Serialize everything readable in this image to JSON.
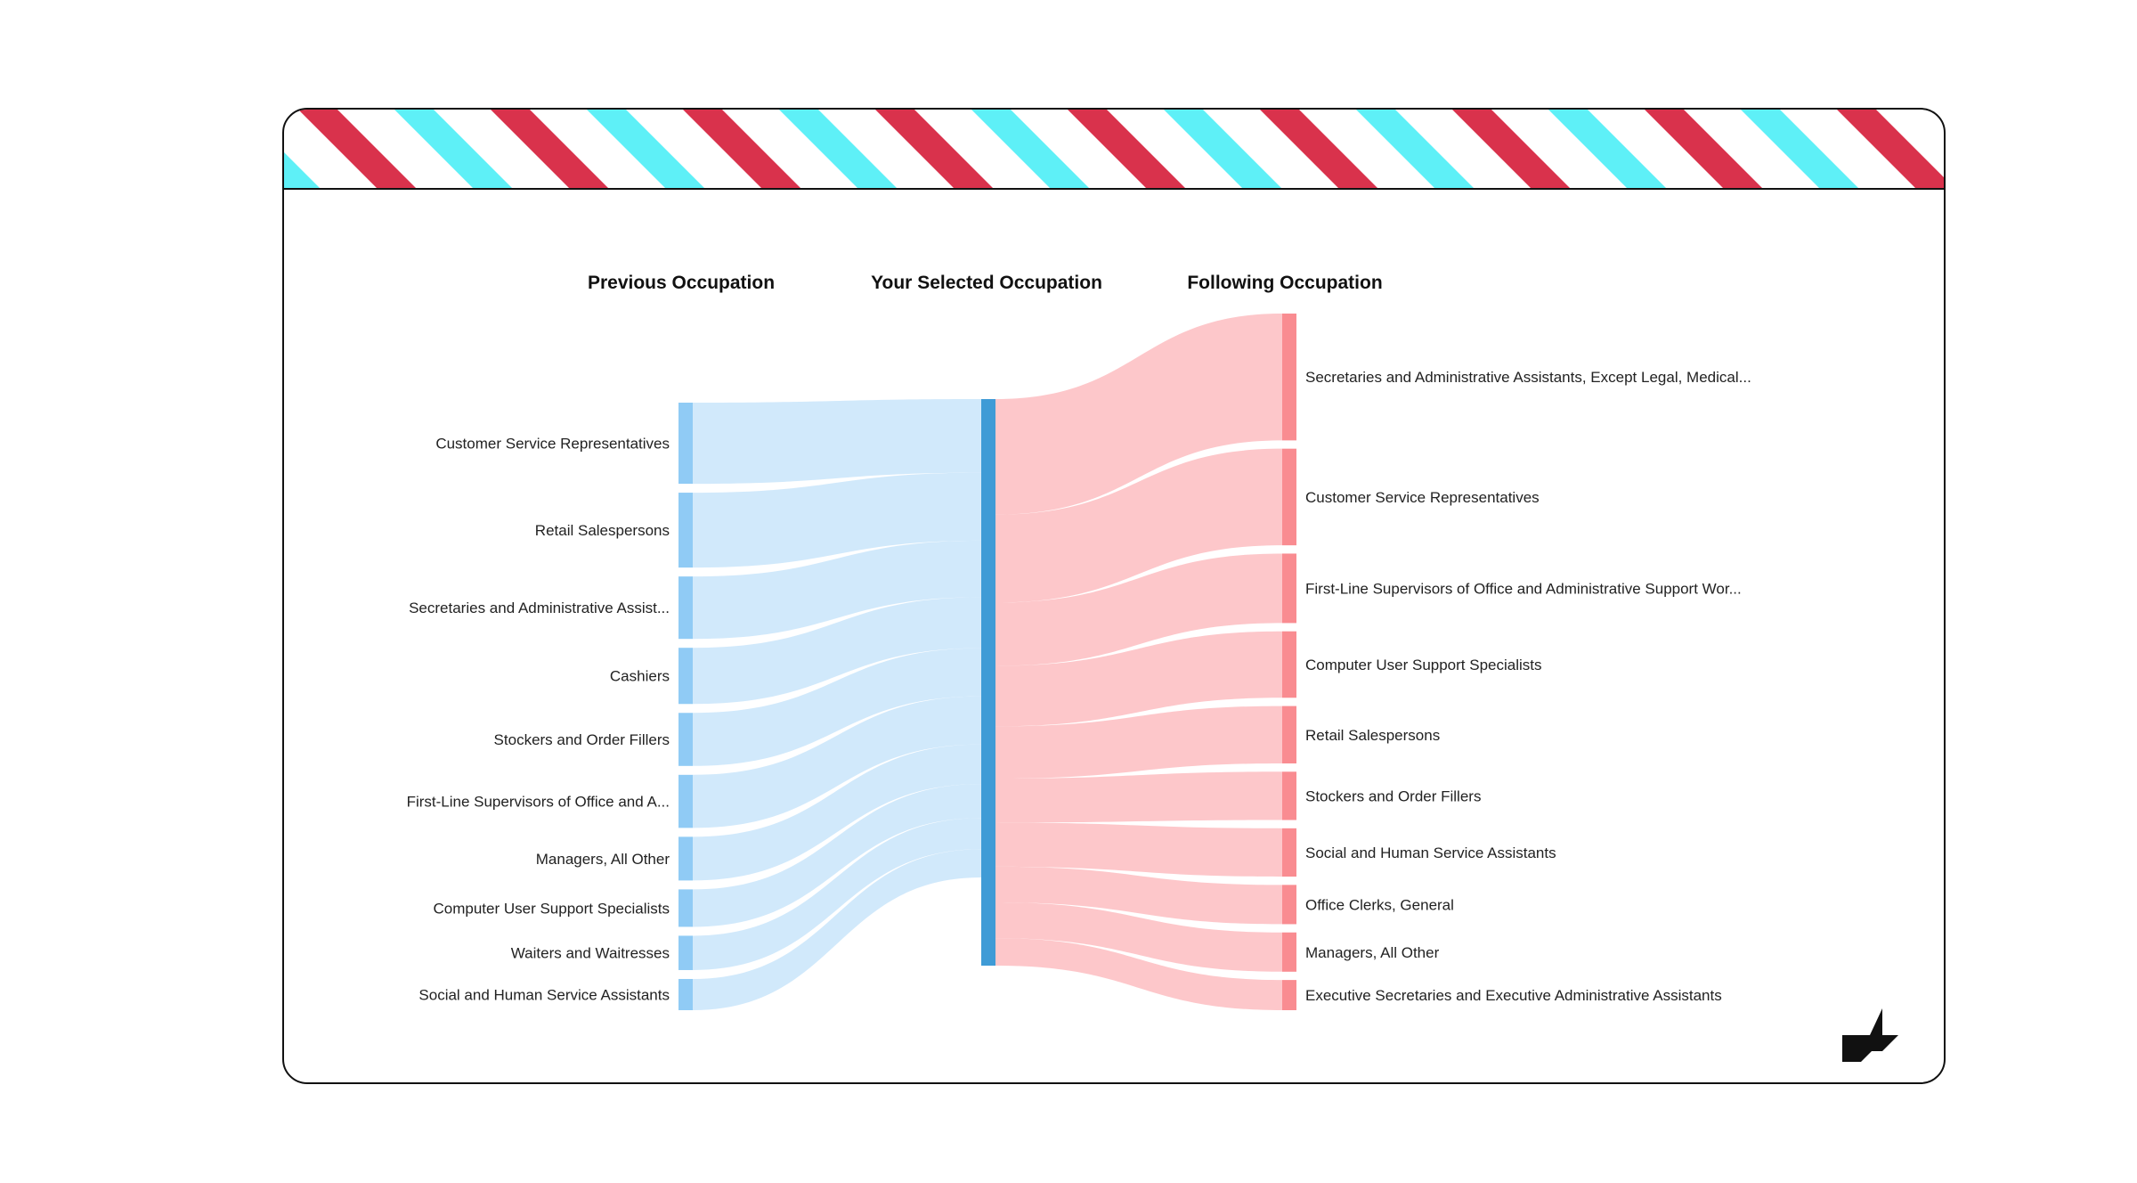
{
  "headers": {
    "previous": "Previous Occupation",
    "selected": "Your Selected Occupation",
    "following": "Following Occupation"
  },
  "colors": {
    "stripe_red": "#d9324c",
    "stripe_cyan": "#5ef0f7",
    "left_node": "#90cbf5",
    "left_link": "#cfe8fb",
    "center_node": "#3f9bd6",
    "right_node": "#f98c91",
    "right_link": "#fdc4c7",
    "logo": "#111111"
  },
  "chart_data": {
    "type": "sankey",
    "previous": [
      {
        "label": "Customer Service Representatives",
        "value": 13
      },
      {
        "label": "Retail Salespersons",
        "value": 12
      },
      {
        "label": "Secretaries and Administrative Assist...",
        "value": 10
      },
      {
        "label": "Cashiers",
        "value": 9
      },
      {
        "label": "Stockers and Order Fillers",
        "value": 8.5
      },
      {
        "label": "First-Line Supervisors of Office and A...",
        "value": 8.5
      },
      {
        "label": "Managers, All Other",
        "value": 7
      },
      {
        "label": "Computer User Support Specialists",
        "value": 6
      },
      {
        "label": "Waiters and Waitresses",
        "value": 5.5
      },
      {
        "label": "Social and Human Service Assistants",
        "value": 5
      }
    ],
    "selected": {
      "label": ""
    },
    "following": [
      {
        "label": "Secretaries and Administrative Assistants, Except Legal, Medical...",
        "value": 21
      },
      {
        "label": "Customer Service Representatives",
        "value": 16
      },
      {
        "label": "First-Line Supervisors of Office and Administrative Support Wor...",
        "value": 11.5
      },
      {
        "label": "Computer User Support Specialists",
        "value": 11
      },
      {
        "label": "Retail Salespersons",
        "value": 9.5
      },
      {
        "label": "Stockers and Order Fillers",
        "value": 8
      },
      {
        "label": "Social and Human Service Assistants",
        "value": 8
      },
      {
        "label": "Office Clerks, General",
        "value": 6.5
      },
      {
        "label": "Managers, All Other",
        "value": 6.5
      },
      {
        "label": "Executive Secretaries and Executive Administrative Assistants",
        "value": 5
      }
    ]
  }
}
